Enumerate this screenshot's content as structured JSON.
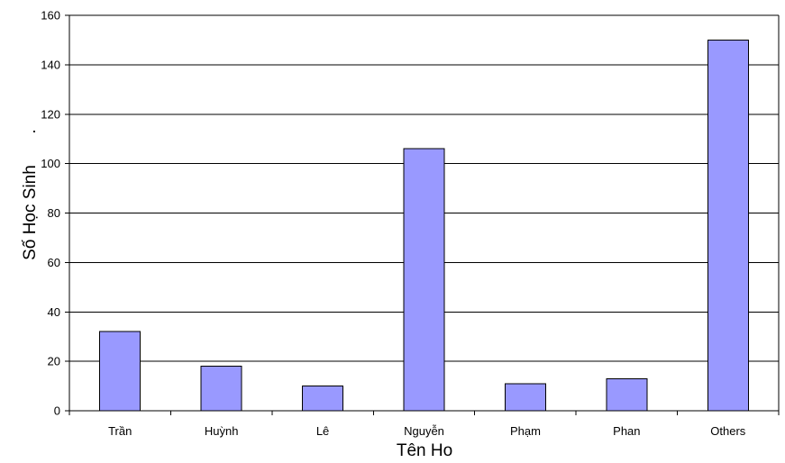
{
  "chart_data": {
    "type": "bar",
    "categories": [
      "Trần",
      "Huỳnh",
      "Lê",
      "Nguyễn",
      "Phạm",
      "Phan",
      "Others"
    ],
    "values": [
      32,
      18,
      10,
      106,
      11,
      13,
      150
    ],
    "xlabel": "Tên Ho",
    "ylabel": "Số Học Sinh",
    "ylabel_mark": ".",
    "ylim": [
      0,
      160
    ],
    "yticks": [
      0,
      20,
      40,
      60,
      80,
      100,
      120,
      140,
      160
    ],
    "grid": true,
    "legend": "none",
    "bar_color": "#9999ff",
    "bar_stroke": "#000000",
    "grid_color": "#000000"
  }
}
